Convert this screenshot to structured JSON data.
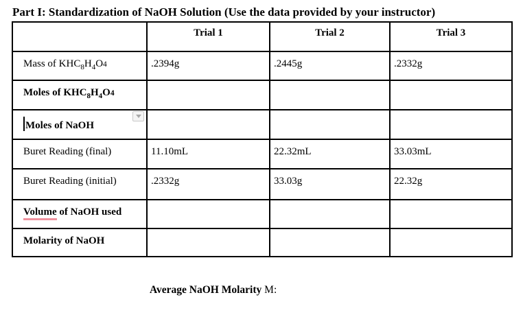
{
  "page": {
    "title": "Part I: Standardization of NaOH Solution (Use the data provided by your instructor)"
  },
  "table": {
    "header": [
      "",
      "Trial 1",
      "Trial 2",
      "Trial 3"
    ],
    "rows": [
      {
        "bold": false,
        "label_parts": [
          {
            "t": "Mass of KHC"
          },
          {
            "t": "8",
            "style": "sub"
          },
          {
            "t": "H"
          },
          {
            "t": "4",
            "style": "sub"
          },
          {
            "t": "O"
          },
          {
            "t": "4",
            "style": "small"
          }
        ],
        "values": [
          ".2394g",
          ".2445g",
          ".2332g"
        ]
      },
      {
        "bold": true,
        "label_parts": [
          {
            "t": "Moles of KHC"
          },
          {
            "t": "8",
            "style": "sub"
          },
          {
            "t": "H"
          },
          {
            "t": "4",
            "style": "sub"
          },
          {
            "t": "O"
          },
          {
            "t": "4",
            "style": "small"
          }
        ],
        "values": [
          "",
          "",
          ""
        ]
      },
      {
        "bold": true,
        "caret": true,
        "dropdown": true,
        "label_parts": [
          {
            "t": "Moles of NaOH"
          }
        ],
        "values": [
          "",
          "",
          ""
        ]
      },
      {
        "bold": false,
        "label_parts": [
          {
            "t": "Buret Reading (final)"
          }
        ],
        "values": [
          "11.10mL",
          "22.32mL",
          "33.03mL"
        ]
      },
      {
        "bold": false,
        "label_parts": [
          {
            "t": "Buret Reading (initial)"
          }
        ],
        "values": [
          ".2332g",
          "33.03g",
          "22.32g"
        ]
      },
      {
        "bold": true,
        "label_parts": [
          {
            "t": "Volume",
            "style": "underline"
          },
          {
            "t": " of NaOH used"
          }
        ],
        "values": [
          "",
          "",
          ""
        ]
      },
      {
        "bold": true,
        "label_parts": [
          {
            "t": "Molarity of NaOH"
          }
        ],
        "values": [
          "",
          "",
          ""
        ]
      }
    ]
  },
  "footer": {
    "bold_text": "Average NaOH Molarity",
    "regular_text": " M:"
  },
  "icons": {
    "dropdown": "chevron-down"
  },
  "colors": {
    "background": "#ffffff",
    "text": "#000000",
    "table_border": "#000000",
    "volume_underline": "#f0919e",
    "dropdown_background": "#f4f4f4",
    "dropdown_border": "#c9c9c9",
    "dropdown_arrow": "#a8a8a8"
  }
}
